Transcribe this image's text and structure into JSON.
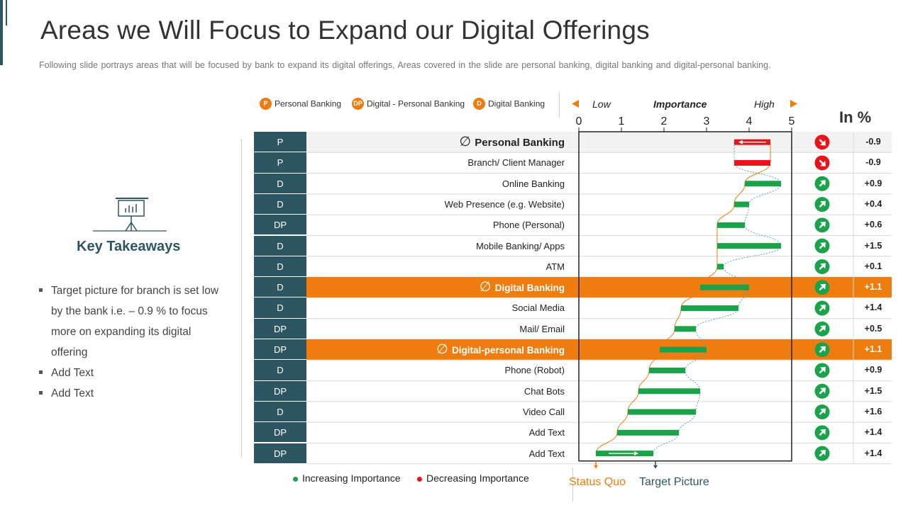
{
  "title": "Areas we Will Focus to Expand our Digital Offerings",
  "subtitle": "Following slide portrays areas that will be focused by bank to expand its digital offerings, Areas covered in the slide are personal banking, digital banking and digital-personal banking.",
  "takeaways": {
    "heading": "Key Takeaways",
    "items": [
      "Target picture for branch is set low by the bank i.e. – 0.9 % to focus more on expanding its digital offering",
      "Add Text",
      "Add Text"
    ]
  },
  "legend_top": [
    {
      "badge": "P",
      "label": "Personal Banking"
    },
    {
      "badge": "DP",
      "label": "Digital - Personal Banking"
    },
    {
      "badge": "D",
      "label": "Digital Banking"
    }
  ],
  "axis": {
    "low": "Low",
    "title": "Importance",
    "high": "High",
    "unit": "In %"
  },
  "legend_bottom": {
    "increasing": "Increasing Importance",
    "decreasing": "Decreasing Importance"
  },
  "markers": {
    "status_quo": "Status Quo",
    "target": "Target Picture"
  },
  "colors": {
    "teal": "#2d5562",
    "orange": "#ee7c0e",
    "green": "#1aa34a",
    "red": "#e8141a",
    "gray_row": "#f2f2f2"
  },
  "chart_data": {
    "type": "bar",
    "xlim": [
      0,
      5
    ],
    "ticks": [
      0,
      1,
      2,
      3,
      4,
      5
    ],
    "rows": [
      {
        "code": "P",
        "label": "Personal Banking",
        "kind": "header-gray",
        "status_quo": 4.5,
        "target": 3.65,
        "change": "-0.9",
        "direction": "down"
      },
      {
        "code": "P",
        "label": "Branch/ Client Manager",
        "kind": "normal",
        "status_quo": 4.5,
        "target": 3.65,
        "change": "-0.9",
        "direction": "down"
      },
      {
        "code": "D",
        "label": "Online Banking",
        "kind": "normal",
        "status_quo": 3.9,
        "target": 4.75,
        "change": "+0.9",
        "direction": "up"
      },
      {
        "code": "D",
        "label": "Web Presence (e.g. Website)",
        "kind": "normal",
        "status_quo": 3.65,
        "target": 4.0,
        "change": "+0.4",
        "direction": "up"
      },
      {
        "code": "DP",
        "label": "Phone (Personal)",
        "kind": "normal",
        "status_quo": 3.25,
        "target": 3.9,
        "change": "+0.6",
        "direction": "up"
      },
      {
        "code": "D",
        "label": "Mobile Banking/ Apps",
        "kind": "normal",
        "status_quo": 3.25,
        "target": 4.75,
        "change": "+1.5",
        "direction": "up"
      },
      {
        "code": "D",
        "label": "ATM",
        "kind": "normal",
        "status_quo": 3.25,
        "target": 3.4,
        "change": "+0.1",
        "direction": "up"
      },
      {
        "code": "D",
        "label": "Digital Banking",
        "kind": "header-orange",
        "status_quo": 2.85,
        "target": 4.0,
        "change": "+1.1",
        "direction": "up"
      },
      {
        "code": "D",
        "label": "Social Media",
        "kind": "normal",
        "status_quo": 2.4,
        "target": 3.75,
        "change": "+1.4",
        "direction": "up"
      },
      {
        "code": "DP",
        "label": "Mail/ Email",
        "kind": "normal",
        "status_quo": 2.25,
        "target": 2.75,
        "change": "+0.5",
        "direction": "up"
      },
      {
        "code": "DP",
        "label": "Digital-personal Banking",
        "kind": "header-orange",
        "status_quo": 1.9,
        "target": 3.0,
        "change": "+1.1",
        "direction": "up"
      },
      {
        "code": "D",
        "label": "Phone (Robot)",
        "kind": "normal",
        "status_quo": 1.65,
        "target": 2.5,
        "change": "+0.9",
        "direction": "up"
      },
      {
        "code": "DP",
        "label": "Chat Bots",
        "kind": "normal",
        "status_quo": 1.4,
        "target": 2.85,
        "change": "+1.5",
        "direction": "up"
      },
      {
        "code": "D",
        "label": "Video Call",
        "kind": "normal",
        "status_quo": 1.15,
        "target": 2.75,
        "change": "+1.6",
        "direction": "up"
      },
      {
        "code": "DP",
        "label": "Add Text",
        "kind": "normal",
        "status_quo": 0.9,
        "target": 2.35,
        "change": "+1.4",
        "direction": "up"
      },
      {
        "code": "DP",
        "label": "Add Text",
        "kind": "normal",
        "status_quo": 0.4,
        "target": 1.75,
        "change": "+1.4",
        "direction": "up"
      }
    ]
  }
}
